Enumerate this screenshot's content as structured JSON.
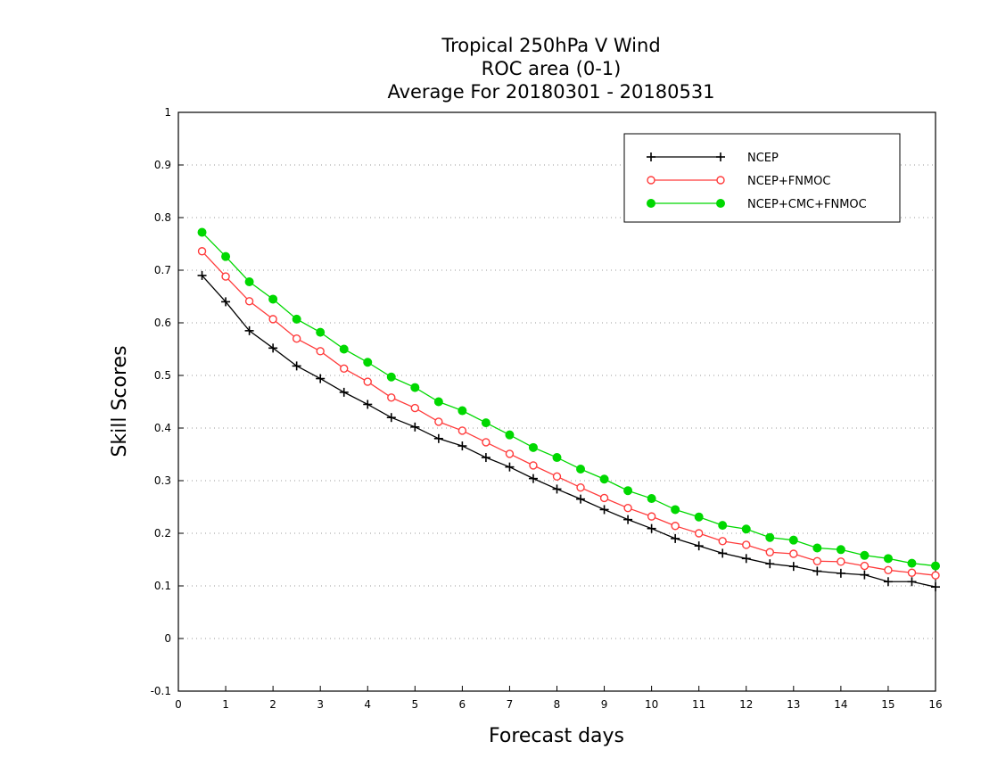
{
  "chart_data": {
    "type": "line",
    "title": [
      "Tropical 250hPa V Wind",
      "ROC area (0-1)",
      "Average For 20180301 - 20180531"
    ],
    "xlabel": "Forecast days",
    "ylabel": "Skill Scores",
    "xlim": [
      0,
      16
    ],
    "ylim": [
      -0.1,
      1
    ],
    "xticks": [
      0,
      1,
      2,
      3,
      4,
      5,
      6,
      7,
      8,
      9,
      10,
      11,
      12,
      13,
      14,
      15,
      16
    ],
    "yticks": [
      -0.1,
      0,
      0.1,
      0.2,
      0.3,
      0.4,
      0.5,
      0.6,
      0.7,
      0.8,
      0.9,
      1
    ],
    "ytick_labels": [
      "-0.1",
      "0",
      "0.1",
      "0.2",
      "0.3",
      "0.4",
      "0.5",
      "0.6",
      "0.7",
      "0.8",
      "0.9",
      "1"
    ],
    "grid": true,
    "legend_position": "top-right",
    "x": [
      0.5,
      1,
      1.5,
      2,
      2.5,
      3,
      3.5,
      4,
      4.5,
      5,
      5.5,
      6,
      6.5,
      7,
      7.5,
      8,
      8.5,
      9,
      9.5,
      10,
      10.5,
      11,
      11.5,
      12,
      12.5,
      13,
      13.5,
      14,
      14.5,
      15,
      15.5,
      16
    ],
    "series": [
      {
        "name": "NCEP",
        "color": "#000000",
        "marker": "plus",
        "values": [
          0.69,
          0.64,
          0.585,
          0.552,
          0.518,
          0.494,
          0.468,
          0.445,
          0.42,
          0.402,
          0.38,
          0.366,
          0.344,
          0.326,
          0.304,
          0.284,
          0.265,
          0.245,
          0.226,
          0.209,
          0.19,
          0.176,
          0.162,
          0.152,
          0.142,
          0.137,
          0.128,
          0.124,
          0.121,
          0.108,
          0.108,
          0.098
        ]
      },
      {
        "name": "NCEP+FNMOC",
        "color": "#ff3b3b",
        "marker": "open-circle",
        "values": [
          0.736,
          0.688,
          0.641,
          0.607,
          0.57,
          0.546,
          0.513,
          0.488,
          0.458,
          0.438,
          0.412,
          0.395,
          0.373,
          0.351,
          0.329,
          0.308,
          0.287,
          0.267,
          0.248,
          0.232,
          0.214,
          0.2,
          0.185,
          0.178,
          0.164,
          0.161,
          0.147,
          0.146,
          0.138,
          0.13,
          0.125,
          0.12
        ]
      },
      {
        "name": "NCEP+CMC+FNMOC",
        "color": "#00d800",
        "marker": "filled-circle",
        "values": [
          0.772,
          0.726,
          0.678,
          0.645,
          0.607,
          0.582,
          0.55,
          0.525,
          0.497,
          0.477,
          0.45,
          0.433,
          0.41,
          0.387,
          0.363,
          0.344,
          0.322,
          0.303,
          0.281,
          0.266,
          0.245,
          0.231,
          0.215,
          0.208,
          0.192,
          0.187,
          0.172,
          0.169,
          0.158,
          0.152,
          0.143,
          0.138
        ]
      }
    ]
  }
}
